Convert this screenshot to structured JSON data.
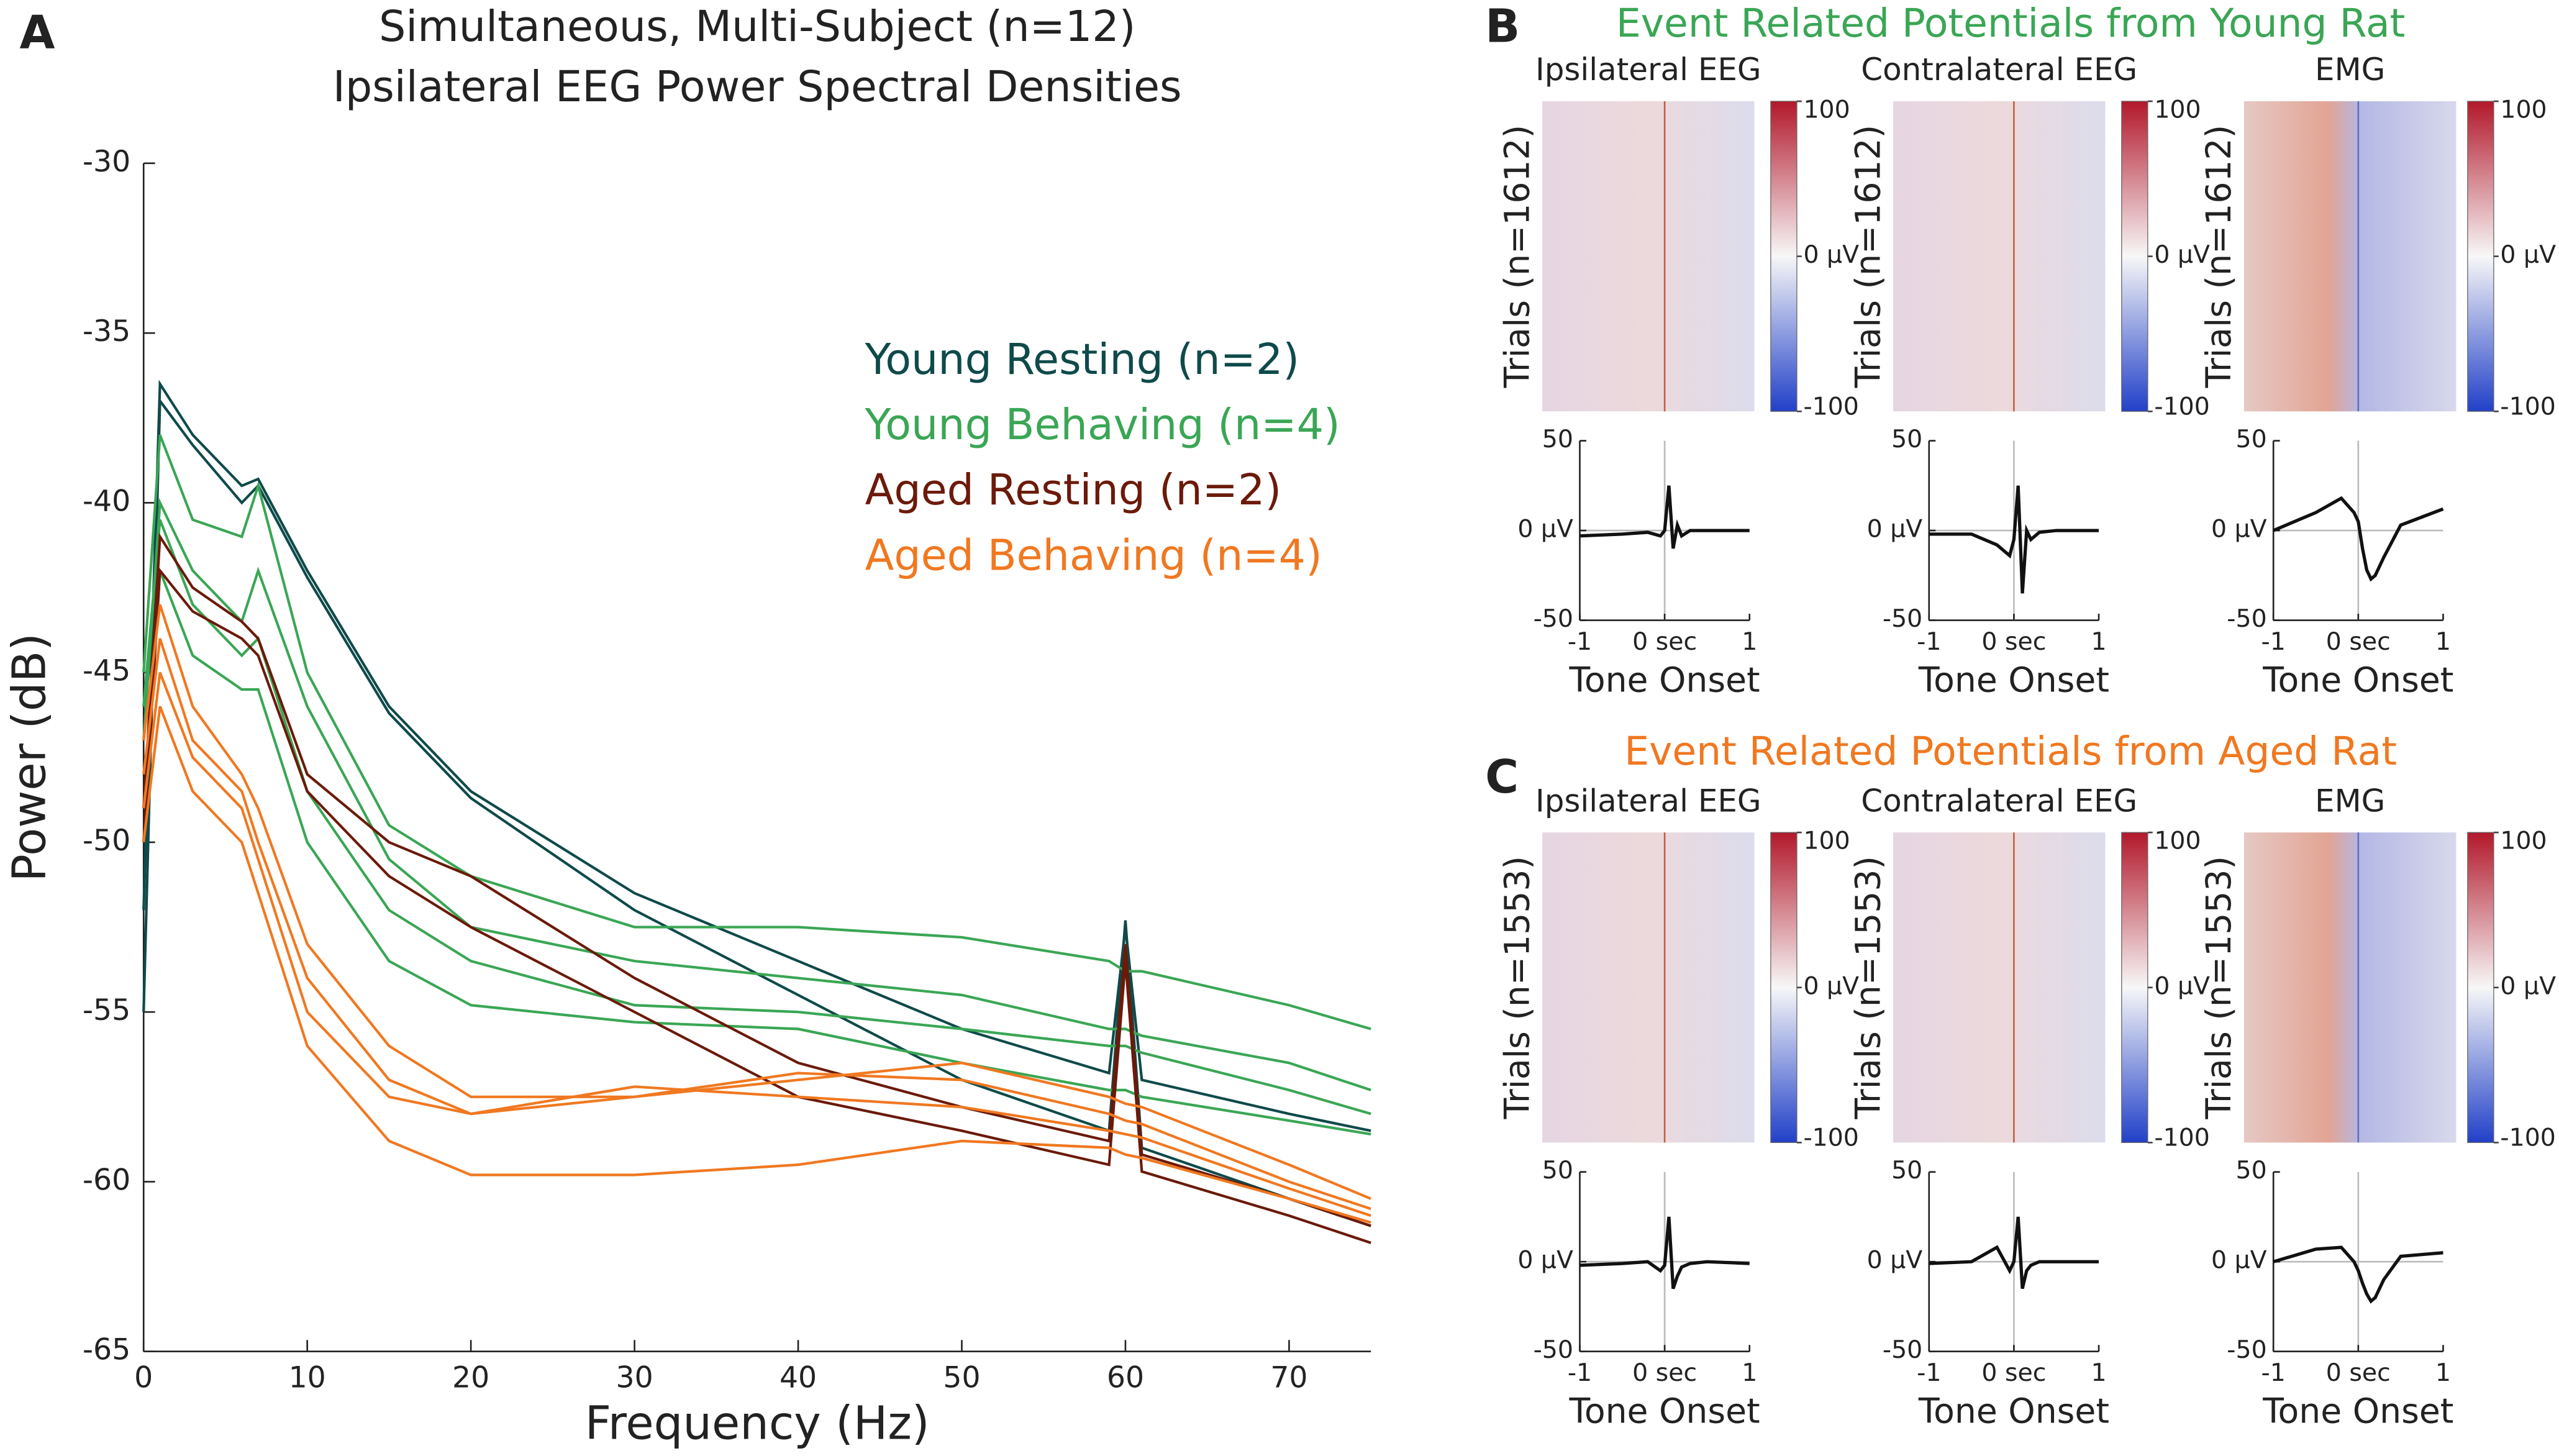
{
  "figure": {
    "panel_labels": [
      "A",
      "B",
      "C"
    ],
    "group_titles": [
      "Event Related Potentials from Young Rat",
      "Event Related Potentials from Aged Rat"
    ],
    "group_colors": [
      "#3aa655",
      "#f07820"
    ]
  },
  "chart_data": [
    {
      "type": "line",
      "title": [
        "Simultaneous, Multi-Subject (n=12)",
        "Ipsilateral EEG Power Spectral Densities"
      ],
      "xlabel": "Frequency (Hz)",
      "ylabel": "Power (dB)",
      "x": [
        0,
        1,
        3,
        6,
        7,
        10,
        15,
        20,
        30,
        40,
        50,
        59,
        60,
        61,
        70,
        75
      ],
      "xlim": [
        0,
        75
      ],
      "ylim": [
        -65,
        -30
      ],
      "xticks": [
        0,
        10,
        20,
        30,
        40,
        50,
        60,
        70
      ],
      "yticks": [
        -65,
        -60,
        -55,
        -50,
        -45,
        -40,
        -35,
        -30
      ],
      "legend": "upper right",
      "series": [
        {
          "name": "Young Resting (n=2)",
          "color": "#0f4a4a",
          "subjects": [
            [
              -52,
              -36.5,
              -38,
              -39.5,
              -39.3,
              -42,
              -46,
              -48.5,
              -51.5,
              -53.5,
              -55.5,
              -56.8,
              -52.5,
              -57,
              -58,
              -58.5
            ],
            [
              -55,
              -37,
              -38.3,
              -40,
              -39.5,
              -42.2,
              -46.2,
              -48.7,
              -52,
              -54.5,
              -57,
              -58.5,
              -52.3,
              -59,
              -60.5,
              -61.3
            ]
          ]
        },
        {
          "name": "Young Behaving (n=4)",
          "color": "#3aa655",
          "subjects": [
            [
              -45,
              -38,
              -40.5,
              -41,
              -39.5,
              -45,
              -49.5,
              -51,
              -52.5,
              -52.5,
              -52.8,
              -53.5,
              -53.8,
              -53.8,
              -54.8,
              -55.5
            ],
            [
              -47,
              -40,
              -42,
              -43.5,
              -42,
              -46,
              -50.5,
              -52.5,
              -53.5,
              -54,
              -54.5,
              -55.5,
              -55.5,
              -55.7,
              -56.5,
              -57.3
            ],
            [
              -46,
              -40.5,
              -43,
              -44.5,
              -44,
              -48.5,
              -52,
              -53.5,
              -54.8,
              -55,
              -55.5,
              -56,
              -56,
              -56.2,
              -57.3,
              -58
            ],
            [
              -49,
              -42,
              -44.5,
              -45.5,
              -45.5,
              -50,
              -53.5,
              -54.8,
              -55.3,
              -55.5,
              -56.5,
              -57.3,
              -57.3,
              -57.5,
              -58.2,
              -58.6
            ]
          ]
        },
        {
          "name": "Aged Resting (n=2)",
          "color": "#6b1a0a",
          "subjects": [
            [
              -49,
              -41,
              -42.5,
              -43.5,
              -44,
              -48,
              -50,
              -51,
              -54,
              -56.5,
              -57.8,
              -58.8,
              -53,
              -59.2,
              -60.5,
              -61.3
            ],
            [
              -50,
              -42,
              -43.2,
              -44,
              -44.5,
              -48.5,
              -51,
              -52.5,
              -55,
              -57.5,
              -58.5,
              -59.5,
              -53.5,
              -59.7,
              -61,
              -61.8
            ]
          ]
        },
        {
          "name": "Aged Behaving (n=4)",
          "color": "#f07820",
          "subjects": [
            [
              -47,
              -43,
              -46,
              -48,
              -49,
              -53,
              -56,
              -57.5,
              -57.5,
              -57,
              -56.5,
              -57.5,
              -57.7,
              -57.8,
              -59.5,
              -60.5
            ],
            [
              -48,
              -44,
              -47,
              -48.5,
              -50,
              -54,
              -57,
              -58,
              -57.5,
              -56.8,
              -57,
              -58,
              -58.2,
              -58.3,
              -60,
              -60.8
            ],
            [
              -49,
              -45,
              -47.5,
              -49,
              -50.5,
              -55,
              -57.5,
              -58,
              -57.2,
              -57.5,
              -57.8,
              -58.5,
              -58.6,
              -58.7,
              -60.2,
              -61
            ],
            [
              -50,
              -46,
              -48.5,
              -50,
              -51.5,
              -56,
              -58.8,
              -59.8,
              -59.8,
              -59.5,
              -58.8,
              -59,
              -59.2,
              -59.3,
              -60.5,
              -61.2
            ]
          ]
        }
      ]
    },
    {
      "type": "erp",
      "heatmap_title": "Ipsilateral EEG",
      "heatmap_ylabel": "Trials (n=1612)",
      "heatmap_style": "eeg",
      "clim": [
        -100,
        100
      ],
      "cticks": [
        100,
        {
          "value": 0,
          "label": "0 µV"
        },
        -100
      ],
      "xlabel": "Tone Onset",
      "x": [
        -1,
        -0.5,
        -0.2,
        -0.05,
        0,
        0.05,
        0.1,
        0.15,
        0.2,
        0.3,
        0.5,
        1
      ],
      "values": [
        -3,
        -2,
        -1,
        -3,
        0,
        25,
        -10,
        3,
        -3,
        0,
        0,
        0
      ],
      "xlim": [
        -1,
        1
      ],
      "ylim": [
        -50,
        50
      ],
      "xticks": [
        -1,
        {
          "value": 0,
          "label": "0 sec"
        },
        1
      ],
      "yticks": [
        -50,
        {
          "value": 0,
          "label": "0 µV"
        },
        50
      ]
    },
    {
      "type": "erp",
      "heatmap_title": "Contralateral EEG",
      "heatmap_ylabel": "Trials (n=1612)",
      "heatmap_style": "eeg",
      "clim": [
        -100,
        100
      ],
      "cticks": [
        100,
        {
          "value": 0,
          "label": "0 µV"
        },
        -100
      ],
      "xlabel": "Tone Onset",
      "x": [
        -1,
        -0.5,
        -0.2,
        -0.05,
        0,
        0.05,
        0.1,
        0.15,
        0.2,
        0.3,
        0.5,
        1
      ],
      "values": [
        -2,
        -2,
        -8,
        -14,
        -5,
        25,
        -35,
        0,
        -5,
        -1,
        0,
        0
      ],
      "xlim": [
        -1,
        1
      ],
      "ylim": [
        -50,
        50
      ],
      "xticks": [
        -1,
        {
          "value": 0,
          "label": "0 sec"
        },
        1
      ],
      "yticks": [
        -50,
        {
          "value": 0,
          "label": "0 µV"
        },
        50
      ]
    },
    {
      "type": "erp",
      "heatmap_title": "EMG",
      "heatmap_ylabel": "Trials (n=1612)",
      "heatmap_style": "emg",
      "clim": [
        -100,
        100
      ],
      "cticks": [
        100,
        {
          "value": 0,
          "label": "0 µV"
        },
        -100
      ],
      "xlabel": "Tone Onset",
      "x": [
        -1,
        -0.5,
        -0.2,
        -0.05,
        0,
        0.05,
        0.1,
        0.15,
        0.2,
        0.3,
        0.5,
        1
      ],
      "values": [
        0,
        10,
        18,
        10,
        5,
        -10,
        -22,
        -27,
        -25,
        -15,
        3,
        12
      ],
      "xlim": [
        -1,
        1
      ],
      "ylim": [
        -50,
        50
      ],
      "xticks": [
        -1,
        {
          "value": 0,
          "label": "0 sec"
        },
        1
      ],
      "yticks": [
        -50,
        {
          "value": 0,
          "label": "0 µV"
        },
        50
      ]
    },
    {
      "type": "erp",
      "heatmap_title": "Ipsilateral EEG",
      "heatmap_ylabel": "Trials (n=1553)",
      "heatmap_style": "eeg",
      "clim": [
        -100,
        100
      ],
      "cticks": [
        100,
        {
          "value": 0,
          "label": "0 µV"
        },
        -100
      ],
      "xlabel": "Tone Onset",
      "x": [
        -1,
        -0.5,
        -0.2,
        -0.05,
        0,
        0.05,
        0.1,
        0.15,
        0.2,
        0.3,
        0.5,
        1
      ],
      "values": [
        -2,
        -1,
        0,
        -5,
        -2,
        25,
        -15,
        -8,
        -3,
        -1,
        0,
        -1
      ],
      "xlim": [
        -1,
        1
      ],
      "ylim": [
        -50,
        50
      ],
      "xticks": [
        -1,
        {
          "value": 0,
          "label": "0 sec"
        },
        1
      ],
      "yticks": [
        -50,
        {
          "value": 0,
          "label": "0 µV"
        },
        50
      ]
    },
    {
      "type": "erp",
      "heatmap_title": "Contralateral EEG",
      "heatmap_ylabel": "Trials (n=1553)",
      "heatmap_style": "eeg",
      "clim": [
        -100,
        100
      ],
      "cticks": [
        100,
        {
          "value": 0,
          "label": "0 µV"
        },
        -100
      ],
      "xlabel": "Tone Onset",
      "x": [
        -1,
        -0.5,
        -0.2,
        -0.05,
        0,
        0.05,
        0.1,
        0.15,
        0.2,
        0.3,
        0.5,
        1
      ],
      "values": [
        -1,
        0,
        8,
        -5,
        0,
        25,
        -15,
        -5,
        -2,
        0,
        0,
        0
      ],
      "xlim": [
        -1,
        1
      ],
      "ylim": [
        -50,
        50
      ],
      "xticks": [
        -1,
        {
          "value": 0,
          "label": "0 sec"
        },
        1
      ],
      "yticks": [
        -50,
        {
          "value": 0,
          "label": "0 µV"
        },
        50
      ]
    },
    {
      "type": "erp",
      "heatmap_title": "EMG",
      "heatmap_ylabel": "Trials (n=1553)",
      "heatmap_style": "emg",
      "clim": [
        -100,
        100
      ],
      "cticks": [
        100,
        {
          "value": 0,
          "label": "0 µV"
        },
        -100
      ],
      "xlabel": "Tone Onset",
      "x": [
        -1,
        -0.5,
        -0.2,
        -0.05,
        0,
        0.05,
        0.1,
        0.15,
        0.2,
        0.3,
        0.5,
        1
      ],
      "values": [
        0,
        7,
        8,
        0,
        -5,
        -12,
        -18,
        -22,
        -20,
        -10,
        3,
        5
      ],
      "xlim": [
        -1,
        1
      ],
      "ylim": [
        -50,
        50
      ],
      "xticks": [
        -1,
        {
          "value": 0,
          "label": "0 sec"
        },
        1
      ],
      "yticks": [
        -50,
        {
          "value": 0,
          "label": "0 µV"
        },
        50
      ]
    }
  ]
}
